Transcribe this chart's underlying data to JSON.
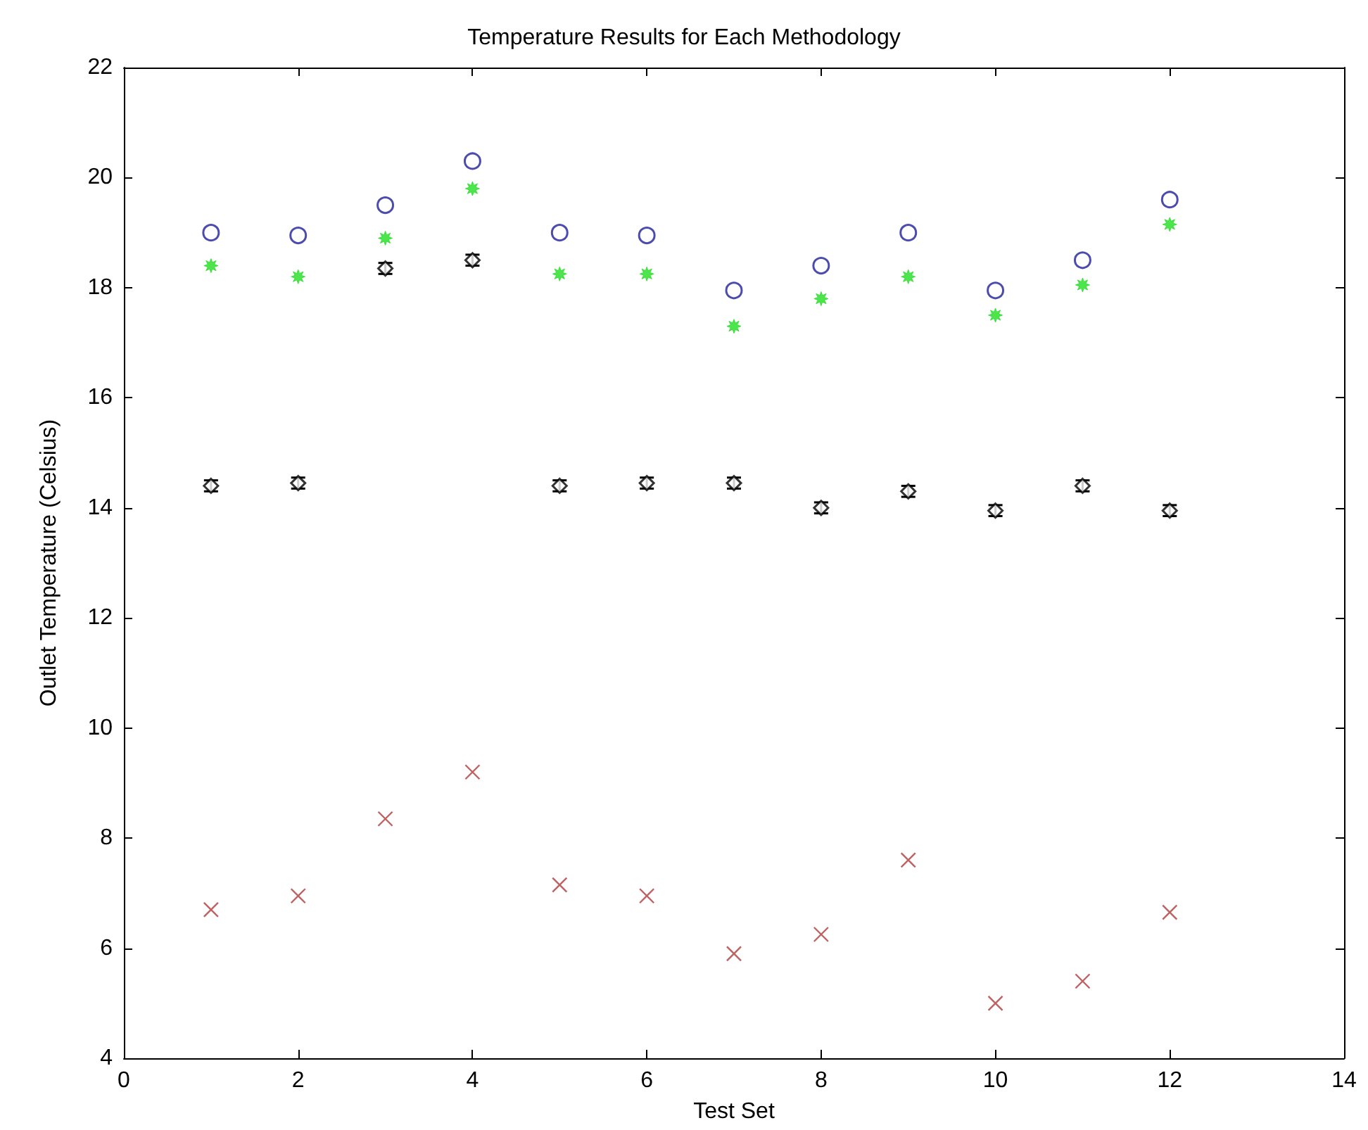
{
  "chart_data": {
    "type": "scatter",
    "title": "Temperature Results for Each Methodology",
    "xlabel": "Test Set",
    "ylabel": "Outlet Temperature (Celsius)",
    "xlim": [
      0,
      14
    ],
    "xticks": [
      0,
      2,
      4,
      6,
      8,
      10,
      12,
      14
    ],
    "ylim": [
      4,
      22
    ],
    "yticks": [
      4,
      6,
      8,
      10,
      12,
      14,
      16,
      18,
      20,
      22
    ],
    "grid": false,
    "x": [
      1,
      2,
      3,
      4,
      5,
      6,
      7,
      8,
      9,
      10,
      11,
      12
    ],
    "series": [
      {
        "color": "#1f1f9a",
        "marker": "circle",
        "values": [
          19.0,
          18.95,
          19.5,
          20.3,
          19.0,
          18.95,
          17.95,
          18.4,
          19.0,
          17.95,
          18.5,
          19.6
        ]
      },
      {
        "color": "#22dd22",
        "marker": "star",
        "values": [
          18.4,
          18.2,
          18.9,
          19.8,
          18.25,
          18.25,
          17.3,
          17.8,
          18.2,
          17.5,
          18.05,
          19.15
        ]
      },
      {
        "color": "#000000",
        "marker": "diamond",
        "values": [
          14.4,
          14.45,
          18.35,
          18.5,
          14.4,
          14.45,
          14.45,
          14.0,
          14.3,
          13.95,
          14.4,
          13.95
        ],
        "errors": [
          0.1,
          0.1,
          0.1,
          0.1,
          0.1,
          0.1,
          0.1,
          0.1,
          0.1,
          0.1,
          0.1,
          0.1
        ]
      },
      {
        "color": "#b03a3a",
        "marker": "cross",
        "values": [
          6.7,
          6.95,
          8.35,
          9.2,
          7.15,
          6.95,
          5.9,
          6.25,
          7.6,
          5.0,
          5.4,
          6.65
        ]
      }
    ]
  }
}
